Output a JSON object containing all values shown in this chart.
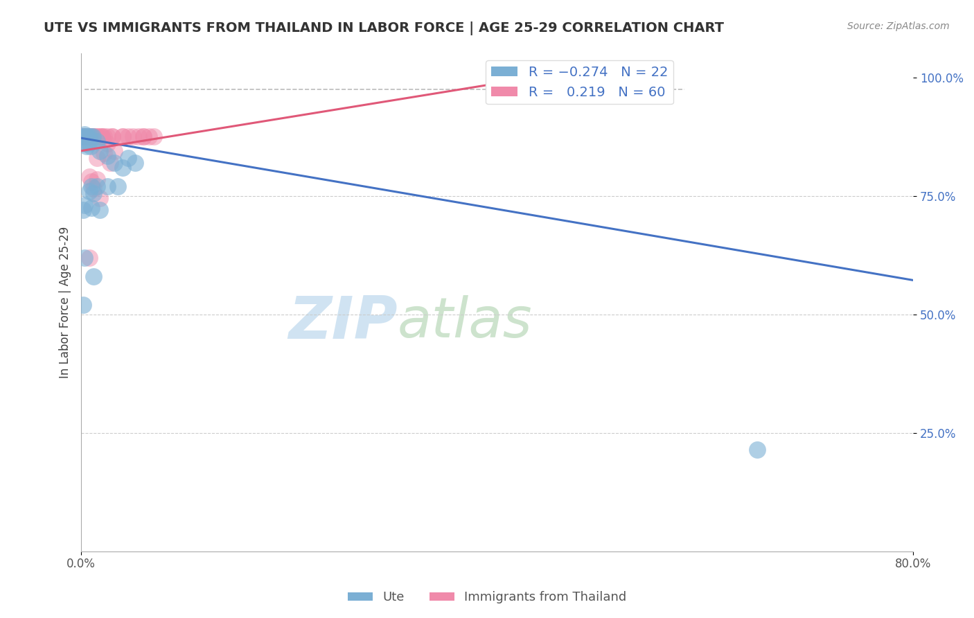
{
  "title": "UTE VS IMMIGRANTS FROM THAILAND IN LABOR FORCE | AGE 25-29 CORRELATION CHART",
  "source_text": "Source: ZipAtlas.com",
  "ylabel": "In Labor Force | Age 25-29",
  "xlim": [
    0.0,
    0.8
  ],
  "ylim": [
    0.0,
    1.05
  ],
  "ute_color": "#7bafd4",
  "thailand_color": "#f08aaa",
  "ute_line_color": "#4472c4",
  "thailand_line_color": "#e05878",
  "background_color": "#ffffff",
  "grid_color": "#cccccc",
  "ute_line": [
    [
      0.0,
      0.872
    ],
    [
      0.8,
      0.572
    ]
  ],
  "thailand_line": [
    [
      0.0,
      0.845
    ],
    [
      0.45,
      1.005
    ]
  ],
  "dashed_line": [
    [
      0.003,
      0.975
    ],
    [
      0.58,
      0.975
    ]
  ],
  "ute_scatter": [
    [
      0.002,
      0.875
    ],
    [
      0.002,
      0.875
    ],
    [
      0.003,
      0.86
    ],
    [
      0.003,
      0.88
    ],
    [
      0.004,
      0.875
    ],
    [
      0.005,
      0.875
    ],
    [
      0.005,
      0.855
    ],
    [
      0.006,
      0.875
    ],
    [
      0.007,
      0.86
    ],
    [
      0.008,
      0.875
    ],
    [
      0.009,
      0.855
    ],
    [
      0.01,
      0.875
    ],
    [
      0.011,
      0.875
    ],
    [
      0.015,
      0.865
    ],
    [
      0.018,
      0.845
    ],
    [
      0.025,
      0.835
    ],
    [
      0.032,
      0.82
    ],
    [
      0.04,
      0.81
    ],
    [
      0.045,
      0.83
    ],
    [
      0.052,
      0.82
    ],
    [
      0.01,
      0.77
    ],
    [
      0.008,
      0.76
    ],
    [
      0.012,
      0.755
    ],
    [
      0.015,
      0.77
    ],
    [
      0.025,
      0.77
    ],
    [
      0.035,
      0.77
    ],
    [
      0.003,
      0.73
    ],
    [
      0.002,
      0.72
    ],
    [
      0.01,
      0.725
    ],
    [
      0.018,
      0.72
    ],
    [
      0.003,
      0.62
    ],
    [
      0.012,
      0.58
    ],
    [
      0.002,
      0.52
    ],
    [
      0.65,
      0.215
    ]
  ],
  "thailand_scatter": [
    [
      0.001,
      0.875
    ],
    [
      0.001,
      0.875
    ],
    [
      0.001,
      0.875
    ],
    [
      0.001,
      0.875
    ],
    [
      0.002,
      0.875
    ],
    [
      0.002,
      0.875
    ],
    [
      0.002,
      0.875
    ],
    [
      0.002,
      0.875
    ],
    [
      0.002,
      0.875
    ],
    [
      0.002,
      0.875
    ],
    [
      0.002,
      0.875
    ],
    [
      0.003,
      0.875
    ],
    [
      0.003,
      0.875
    ],
    [
      0.003,
      0.875
    ],
    [
      0.004,
      0.875
    ],
    [
      0.004,
      0.875
    ],
    [
      0.004,
      0.875
    ],
    [
      0.005,
      0.875
    ],
    [
      0.005,
      0.875
    ],
    [
      0.006,
      0.875
    ],
    [
      0.006,
      0.875
    ],
    [
      0.007,
      0.875
    ],
    [
      0.007,
      0.875
    ],
    [
      0.008,
      0.875
    ],
    [
      0.008,
      0.875
    ],
    [
      0.009,
      0.875
    ],
    [
      0.01,
      0.875
    ],
    [
      0.01,
      0.875
    ],
    [
      0.012,
      0.875
    ],
    [
      0.012,
      0.875
    ],
    [
      0.015,
      0.875
    ],
    [
      0.015,
      0.875
    ],
    [
      0.018,
      0.875
    ],
    [
      0.02,
      0.875
    ],
    [
      0.02,
      0.875
    ],
    [
      0.022,
      0.875
    ],
    [
      0.025,
      0.875
    ],
    [
      0.03,
      0.875
    ],
    [
      0.03,
      0.875
    ],
    [
      0.025,
      0.86
    ],
    [
      0.04,
      0.875
    ],
    [
      0.04,
      0.875
    ],
    [
      0.045,
      0.875
    ],
    [
      0.05,
      0.875
    ],
    [
      0.055,
      0.875
    ],
    [
      0.06,
      0.875
    ],
    [
      0.06,
      0.875
    ],
    [
      0.065,
      0.875
    ],
    [
      0.07,
      0.875
    ],
    [
      0.015,
      0.83
    ],
    [
      0.022,
      0.84
    ],
    [
      0.028,
      0.82
    ],
    [
      0.032,
      0.845
    ],
    [
      0.008,
      0.79
    ],
    [
      0.01,
      0.78
    ],
    [
      0.015,
      0.785
    ],
    [
      0.012,
      0.765
    ],
    [
      0.018,
      0.745
    ],
    [
      0.008,
      0.62
    ]
  ]
}
